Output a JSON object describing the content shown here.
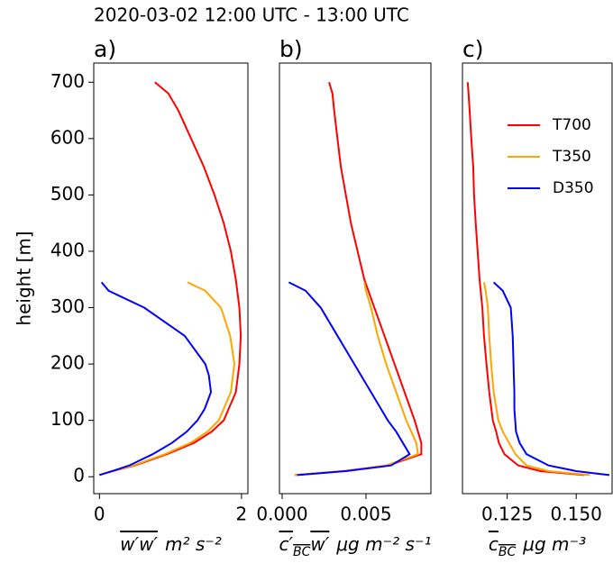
{
  "title": "2020-03-02 12:00 UTC - 13:00 UTC",
  "chart_data": [
    {
      "type": "line",
      "panel_label": "a)",
      "ylabel": "height [m]",
      "xlabel": {
        "symbol": "w′w′",
        "unit": "m² s⁻²"
      },
      "xlim": [
        -0.08,
        2.09
      ],
      "xticks": [
        0,
        2
      ],
      "ylim": [
        -30,
        734
      ],
      "yticks": [
        0,
        100,
        200,
        300,
        400,
        500,
        600,
        700
      ],
      "series": [
        {
          "name": "T700",
          "color": "#ff0000",
          "heights": [
            3,
            10,
            20,
            40,
            60,
            80,
            100,
            150,
            200,
            250,
            300,
            350,
            400,
            450,
            500,
            550,
            600,
            650,
            680,
            700
          ],
          "values": [
            0.0,
            0.19,
            0.5,
            0.95,
            1.33,
            1.58,
            1.75,
            1.92,
            1.97,
            1.99,
            1.97,
            1.92,
            1.85,
            1.75,
            1.62,
            1.47,
            1.29,
            1.11,
            0.97,
            0.78
          ]
        },
        {
          "name": "T350",
          "color": "#ffa500",
          "heights": [
            3,
            10,
            20,
            40,
            60,
            80,
            100,
            150,
            200,
            250,
            300,
            330,
            345
          ],
          "values": [
            0.0,
            0.18,
            0.48,
            0.92,
            1.28,
            1.52,
            1.68,
            1.85,
            1.9,
            1.84,
            1.71,
            1.49,
            1.24
          ]
        },
        {
          "name": "D350",
          "color": "#0000ff",
          "heights": [
            3,
            10,
            20,
            40,
            60,
            80,
            100,
            120,
            150,
            180,
            200,
            250,
            300,
            330,
            345
          ],
          "values": [
            0.0,
            0.18,
            0.42,
            0.75,
            1.02,
            1.23,
            1.38,
            1.48,
            1.57,
            1.54,
            1.49,
            1.2,
            0.63,
            0.13,
            0.03
          ]
        }
      ]
    },
    {
      "type": "line",
      "panel_label": "b)",
      "xlabel": {
        "symbol": "c′",
        "symbol_sub": "BC",
        "symbol_end": "w′",
        "unit": "μg m⁻² s⁻¹"
      },
      "xlim": [
        -0.00016,
        0.00887
      ],
      "xticks": [
        {
          "value": 0,
          "label": "0.000"
        },
        0.005
      ],
      "ylim": [
        -30,
        734
      ],
      "series": [
        {
          "name": "T700",
          "color": "#ff0000",
          "heights": [
            3,
            10,
            20,
            40,
            60,
            80,
            100,
            150,
            200,
            250,
            300,
            350,
            400,
            450,
            500,
            550,
            600,
            650,
            680,
            700
          ],
          "values": [
            0.00075,
            0.0036,
            0.0063,
            0.0083,
            0.0083,
            0.0081,
            0.0079,
            0.0073,
            0.0067,
            0.0061,
            0.0055,
            0.0049,
            0.0045,
            0.0041,
            0.0038,
            0.0035,
            0.0033,
            0.0031,
            0.003,
            0.0028
          ]
        },
        {
          "name": "T350",
          "color": "#ffa500",
          "heights": [
            3,
            10,
            20,
            40,
            60,
            80,
            100,
            150,
            200,
            250,
            300,
            330,
            345
          ],
          "values": [
            0.00075,
            0.0036,
            0.0062,
            0.0081,
            0.008,
            0.0077,
            0.0074,
            0.0068,
            0.0062,
            0.0057,
            0.0053,
            0.005,
            0.0049
          ]
        },
        {
          "name": "D350",
          "color": "#0000ff",
          "heights": [
            3,
            10,
            20,
            40,
            60,
            80,
            100,
            120,
            150,
            180,
            200,
            250,
            300,
            330,
            345
          ],
          "values": [
            0.0009,
            0.0038,
            0.0065,
            0.0076,
            0.0072,
            0.0068,
            0.0063,
            0.0059,
            0.0053,
            0.0047,
            0.0043,
            0.0033,
            0.0023,
            0.0014,
            0.0004
          ]
        }
      ]
    },
    {
      "type": "line",
      "panel_label": "c)",
      "xlabel": {
        "symbol": "c",
        "symbol_sub": "BC",
        "unit": "μg m⁻³"
      },
      "xlim": [
        0.1088,
        0.163
      ],
      "xticks": [
        0.125,
        {
          "value": 0.15,
          "label": "0.150"
        }
      ],
      "ylim": [
        -30,
        734
      ],
      "legend": "upper right",
      "series": [
        {
          "name": "T700",
          "color": "#ff0000",
          "heights": [
            3,
            10,
            20,
            40,
            60,
            80,
            100,
            150,
            200,
            250,
            300,
            350,
            400,
            450,
            500,
            550,
            600,
            650,
            680,
            700
          ],
          "values": [
            0.153,
            0.137,
            0.129,
            0.124,
            0.122,
            0.121,
            0.1198,
            0.1185,
            0.1175,
            0.1166,
            0.116,
            0.115,
            0.1143,
            0.1136,
            0.113,
            0.1127,
            0.112,
            0.1114,
            0.111,
            0.1107
          ]
        },
        {
          "name": "T350",
          "color": "#ffa500",
          "heights": [
            3,
            10,
            20,
            40,
            60,
            80,
            100,
            150,
            200,
            250,
            300,
            330,
            345
          ],
          "values": [
            0.155,
            0.14,
            0.132,
            0.128,
            0.1257,
            0.1234,
            0.1218,
            0.1201,
            0.1192,
            0.1185,
            0.118,
            0.1172,
            0.1166
          ]
        },
        {
          "name": "D350",
          "color": "#0000ff",
          "heights": [
            3,
            10,
            20,
            40,
            60,
            80,
            100,
            120,
            150,
            180,
            200,
            250,
            300,
            330,
            345
          ],
          "values": [
            0.162,
            0.15,
            0.14,
            0.132,
            0.1295,
            0.1282,
            0.1279,
            0.1276,
            0.1276,
            0.1274,
            0.1273,
            0.127,
            0.1263,
            0.1234,
            0.1201
          ]
        }
      ]
    }
  ]
}
